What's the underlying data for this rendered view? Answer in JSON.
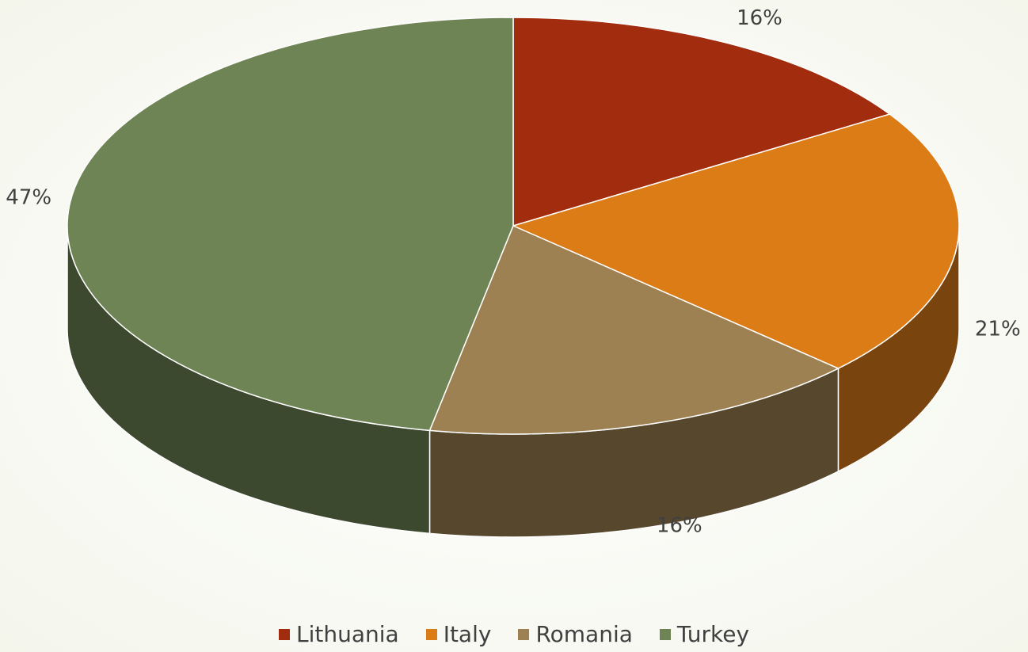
{
  "chart_data": {
    "type": "pie",
    "categories": [
      "Lithuania",
      "Italy",
      "Romania",
      "Turkey"
    ],
    "values": [
      16,
      21,
      16,
      47
    ],
    "value_labels": [
      "16%",
      "21%",
      "16%",
      "47%"
    ],
    "colors": [
      "#a22c0e",
      "#dc7c17",
      "#9e8152",
      "#6f8454"
    ],
    "legend": "bottom"
  }
}
